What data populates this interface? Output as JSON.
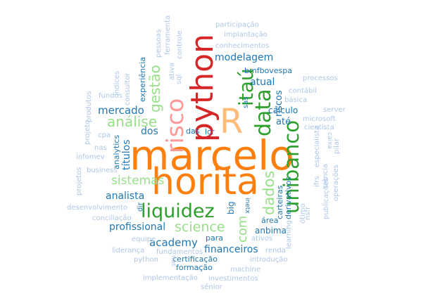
{
  "palette": {
    "orange": "#ff7f0e",
    "red": "#d62728",
    "pink": "#ff9896",
    "green": "#2ca02c",
    "light_green": "#98df8a",
    "blue": "#1f77b4",
    "light_blue": "#aec7e8"
  },
  "words": [
    {
      "text": "marcelo",
      "color": "#ff7f0e"
    },
    {
      "text": "horita",
      "color": "#ff7f0e"
    },
    {
      "text": "R",
      "color": "#ffbb78"
    },
    {
      "text": "python",
      "color": "#d62728"
    },
    {
      "text": "risco",
      "color": "#ff9896"
    },
    {
      "text": "itaú",
      "color": "#2ca02c"
    },
    {
      "text": "data",
      "color": "#2ca02c"
    },
    {
      "text": "unibanco",
      "color": "#2ca02c"
    },
    {
      "text": "liquidez",
      "color": "#2ca02c"
    },
    {
      "text": "science",
      "color": "#98df8a"
    },
    {
      "text": "dados",
      "color": "#98df8a"
    },
    {
      "text": "com",
      "color": "#98df8a"
    },
    {
      "text": "gestão",
      "color": "#98df8a"
    },
    {
      "text": "análise",
      "color": "#98df8a"
    },
    {
      "text": "sistemas",
      "color": "#98df8a"
    },
    {
      "text": "mercado",
      "color": "#1f77b4"
    },
    {
      "text": "modelagem",
      "color": "#1f77b4"
    },
    {
      "text": "atual",
      "color": "#1f77b4"
    },
    {
      "text": "riscos",
      "color": "#1f77b4"
    },
    {
      "text": "até",
      "color": "#1f77b4"
    },
    {
      "text": "academy",
      "color": "#1f77b4"
    },
    {
      "text": "profissional",
      "color": "#1f77b4"
    },
    {
      "text": "analista",
      "color": "#1f77b4"
    },
    {
      "text": "financeiros",
      "color": "#1f77b4"
    },
    {
      "text": "títulos",
      "color": "#1f77b4"
    },
    {
      "text": "dos",
      "color": "#1f77b4"
    },
    {
      "text": "bmfbovespa",
      "color": "#1f77b4"
    },
    {
      "text": "cálculo",
      "color": "#1f77b4"
    },
    {
      "text": "anbima",
      "color": "#1f77b4"
    },
    {
      "text": "formação",
      "color": "#1f77b4"
    },
    {
      "text": "certificação",
      "color": "#1f77b4"
    },
    {
      "text": "carteiras",
      "color": "#1f77b4"
    },
    {
      "text": "derivativos",
      "color": "#1f77b4"
    },
    {
      "text": "área",
      "color": "#1f77b4"
    },
    {
      "text": "big",
      "color": "#1f77b4"
    },
    {
      "text": "para",
      "color": "#1f77b4"
    },
    {
      "text": "das",
      "color": "#1f77b4"
    },
    {
      "text": "lcr",
      "color": "#1f77b4"
    },
    {
      "text": "sas",
      "color": "#1f77b4"
    },
    {
      "text": "analytics",
      "color": "#1f77b4"
    },
    {
      "text": "experiência",
      "color": "#1f77b4"
    },
    {
      "text": "inetx",
      "color": "#1f77b4"
    },
    {
      "text": "dir",
      "color": "#1f77b4"
    },
    {
      "text": "participação",
      "color": "#aec7e8"
    },
    {
      "text": "implantação",
      "color": "#aec7e8"
    },
    {
      "text": "conhecimentos",
      "color": "#aec7e8"
    },
    {
      "text": "processos",
      "color": "#aec7e8"
    },
    {
      "text": "contábil",
      "color": "#aec7e8"
    },
    {
      "text": "básica",
      "color": "#aec7e8"
    },
    {
      "text": "server",
      "color": "#aec7e8"
    },
    {
      "text": "microsoft",
      "color": "#aec7e8"
    },
    {
      "text": "cientista",
      "color": "#aec7e8"
    },
    {
      "text": "caixa",
      "color": "#aec7e8"
    },
    {
      "text": "pilar",
      "color": "#aec7e8"
    },
    {
      "text": "especialista",
      "color": "#aec7e8"
    },
    {
      "text": "ifrs",
      "color": "#aec7e8"
    },
    {
      "text": "ciência",
      "color": "#aec7e8"
    },
    {
      "text": "operações",
      "color": "#aec7e8"
    },
    {
      "text": "publicações",
      "color": "#aec7e8"
    },
    {
      "text": "ótimo",
      "color": "#aec7e8"
    },
    {
      "text": "nsfr",
      "color": "#aec7e8"
    },
    {
      "text": "learning",
      "color": "#aec7e8"
    },
    {
      "text": "renda",
      "color": "#aec7e8"
    },
    {
      "text": "ativos",
      "color": "#aec7e8"
    },
    {
      "text": "introdução",
      "color": "#aec7e8"
    },
    {
      "text": "machine",
      "color": "#aec7e8"
    },
    {
      "text": "investimentos",
      "color": "#aec7e8"
    },
    {
      "text": "implementação",
      "color": "#aec7e8"
    },
    {
      "text": "sênior",
      "color": "#aec7e8"
    },
    {
      "text": "fundamentos",
      "color": "#aec7e8"
    },
    {
      "text": "liderança",
      "color": "#aec7e8"
    },
    {
      "text": "equipe",
      "color": "#aec7e8"
    },
    {
      "text": "conciliação",
      "color": "#aec7e8"
    },
    {
      "text": "desenvolvimento",
      "color": "#aec7e8"
    },
    {
      "text": "business",
      "color": "#aec7e8"
    },
    {
      "text": "infomev",
      "color": "#aec7e8"
    },
    {
      "text": "nas",
      "color": "#aec7e8"
    },
    {
      "text": "cpa",
      "color": "#aec7e8"
    },
    {
      "text": "projeto",
      "color": "#aec7e8"
    },
    {
      "text": "projetos",
      "color": "#aec7e8"
    },
    {
      "text": "produtos",
      "color": "#aec7e8"
    },
    {
      "text": "fundos",
      "color": "#aec7e8"
    },
    {
      "text": "consultor",
      "color": "#aec7e8"
    },
    {
      "text": "índices",
      "color": "#aec7e8"
    },
    {
      "text": "ativa",
      "color": "#aec7e8"
    },
    {
      "text": "sql",
      "color": "#aec7e8"
    },
    {
      "text": "pessoas",
      "color": "#aec7e8"
    },
    {
      "text": "ferramenta",
      "color": "#aec7e8"
    },
    {
      "text": "controle",
      "color": "#aec7e8"
    },
    {
      "text": "python",
      "color": "#aec7e8"
    },
    {
      "text": "nos",
      "color": "#aec7e8"
    }
  ]
}
